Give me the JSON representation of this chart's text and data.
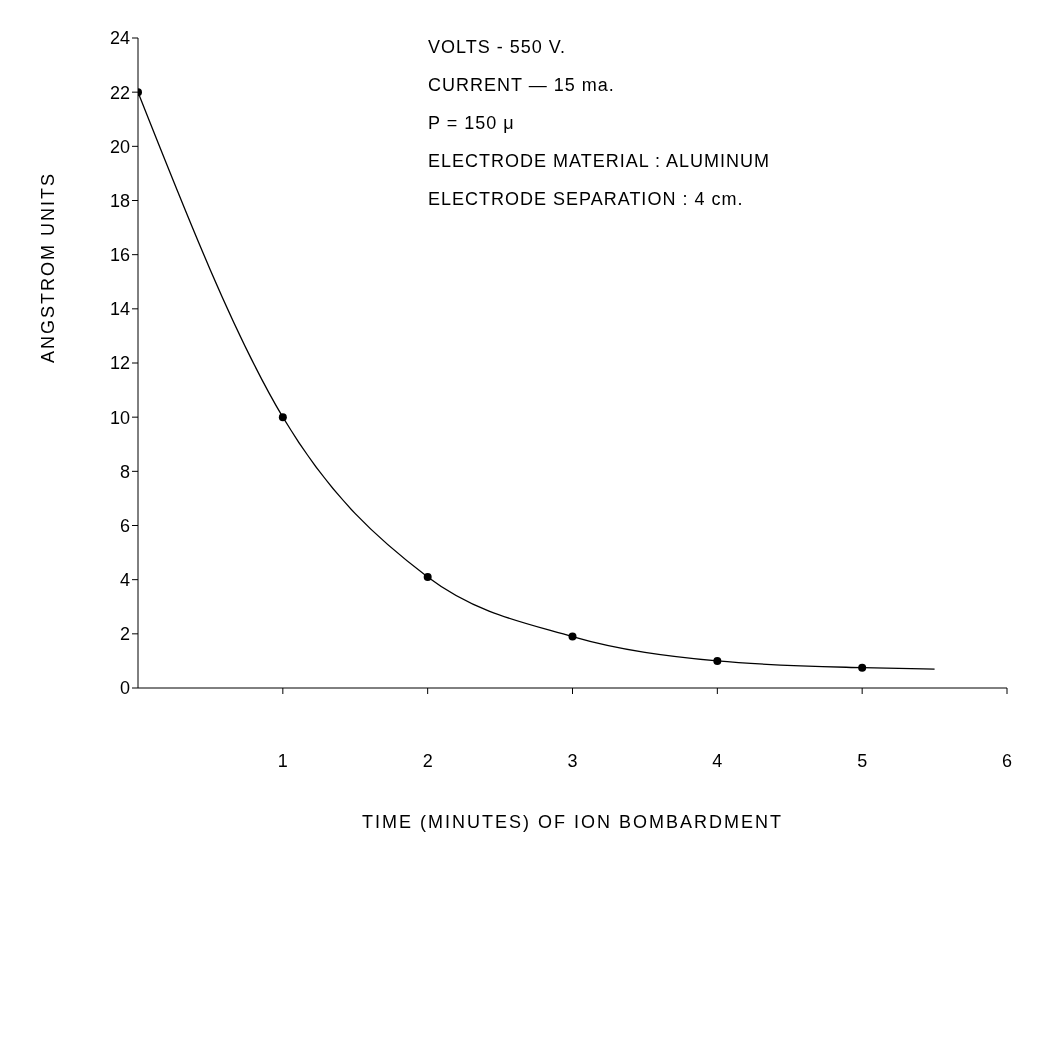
{
  "chart_data": {
    "type": "line",
    "xlabel": "TIME (MINUTES) OF ION BOMBARDMENT",
    "ylabel": "ANGSTROM UNITS",
    "annotations": [
      "VOLTS - 550 V.",
      "CURRENT — 15 ma.",
      "P = 150 μ",
      "ELECTRODE MATERIAL : ALUMINUM",
      "ELECTRODE SEPARATION : 4 cm."
    ],
    "series": [
      {
        "color": "#000000",
        "marker": "none",
        "line_style": "solid",
        "x": [
          0,
          1,
          2,
          3,
          4,
          5,
          5.5
        ],
        "values": [
          22,
          10,
          4.1,
          1.9,
          1.0,
          0.75,
          0.7
        ]
      },
      {
        "type": "scatter",
        "color": "#000000",
        "marker": "circle",
        "x": [
          0,
          1,
          2,
          3,
          4,
          5
        ],
        "values": [
          22,
          10,
          4.1,
          1.9,
          1.0,
          0.75
        ]
      }
    ],
    "xlim": [
      0,
      6
    ],
    "xticks": [
      1,
      2,
      3,
      4,
      5,
      6
    ],
    "ylim": [
      0,
      24
    ],
    "yticks": [
      0,
      2,
      4,
      6,
      8,
      10,
      12,
      14,
      16,
      18,
      20,
      22,
      24
    ],
    "grid": false
  }
}
